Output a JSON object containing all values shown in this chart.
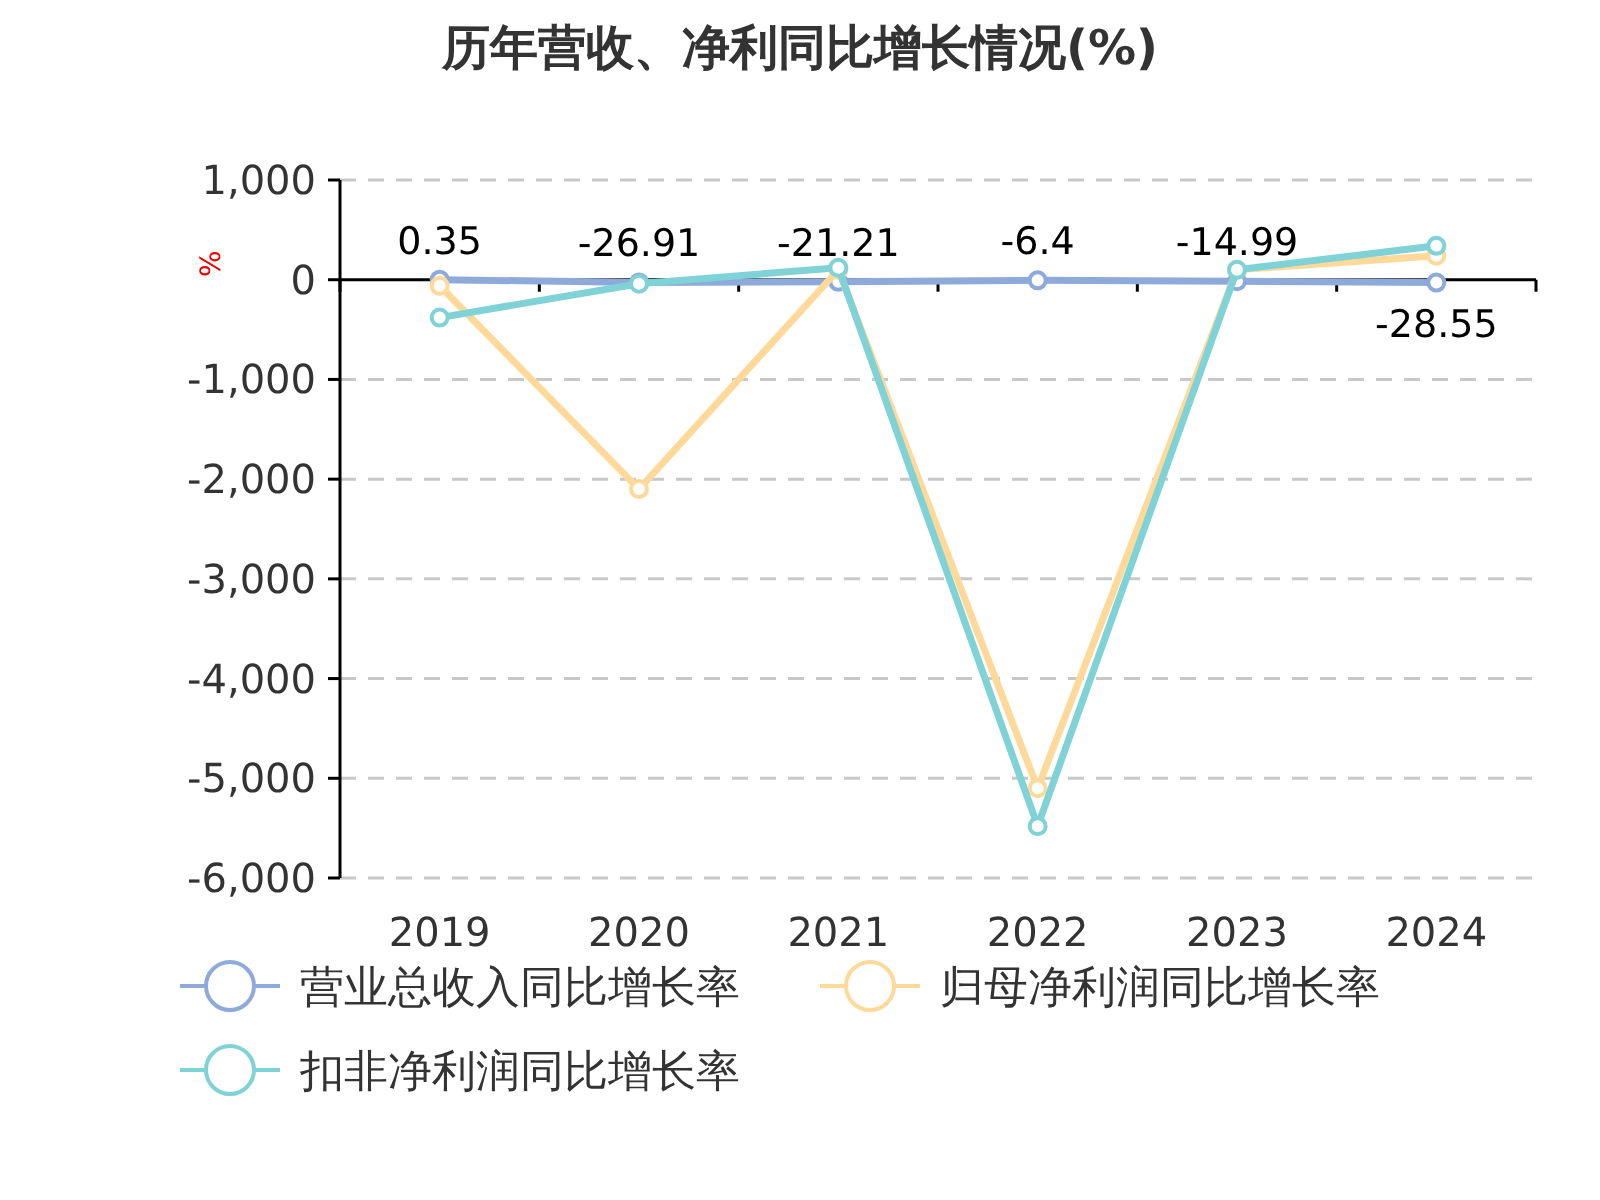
{
  "chart_data": {
    "type": "line",
    "title": "历年营收、净利同比增长情况(%)",
    "ylabel": "%",
    "categories": [
      "2019",
      "2020",
      "2021",
      "2022",
      "2023",
      "2024"
    ],
    "series": [
      {
        "name": "营业总收入同比增长率",
        "color": "#8eaadb",
        "values": [
          0.35,
          -26.91,
          -21.21,
          -6.4,
          -14.99,
          -28.55
        ],
        "value_labels": [
          "0.35",
          "-26.91",
          "-21.21",
          "-6.4",
          "-14.99",
          "-28.55"
        ]
      },
      {
        "name": "归母净利润同比增长率",
        "color": "#ffd99a",
        "values": [
          -60,
          -2100,
          100,
          -5100,
          100,
          240
        ]
      },
      {
        "name": "扣非净利润同比增长率",
        "color": "#7fd3d6",
        "values": [
          -380,
          -40,
          120,
          -5480,
          100,
          340
        ]
      }
    ],
    "ylim": [
      -6000,
      1000
    ],
    "yticks": [
      {
        "value": -6000,
        "label": "-6,000"
      },
      {
        "value": -5000,
        "label": "-5,000"
      },
      {
        "value": -4000,
        "label": "-4,000"
      },
      {
        "value": -3000,
        "label": "-3,000"
      },
      {
        "value": -2000,
        "label": "-2,000"
      },
      {
        "value": -1000,
        "label": "-1,000"
      },
      0,
      {
        "value": 1000,
        "label": "1,000"
      }
    ],
    "grid": "y",
    "legend": "bottom",
    "marker": "circle",
    "line_style": "solid"
  }
}
